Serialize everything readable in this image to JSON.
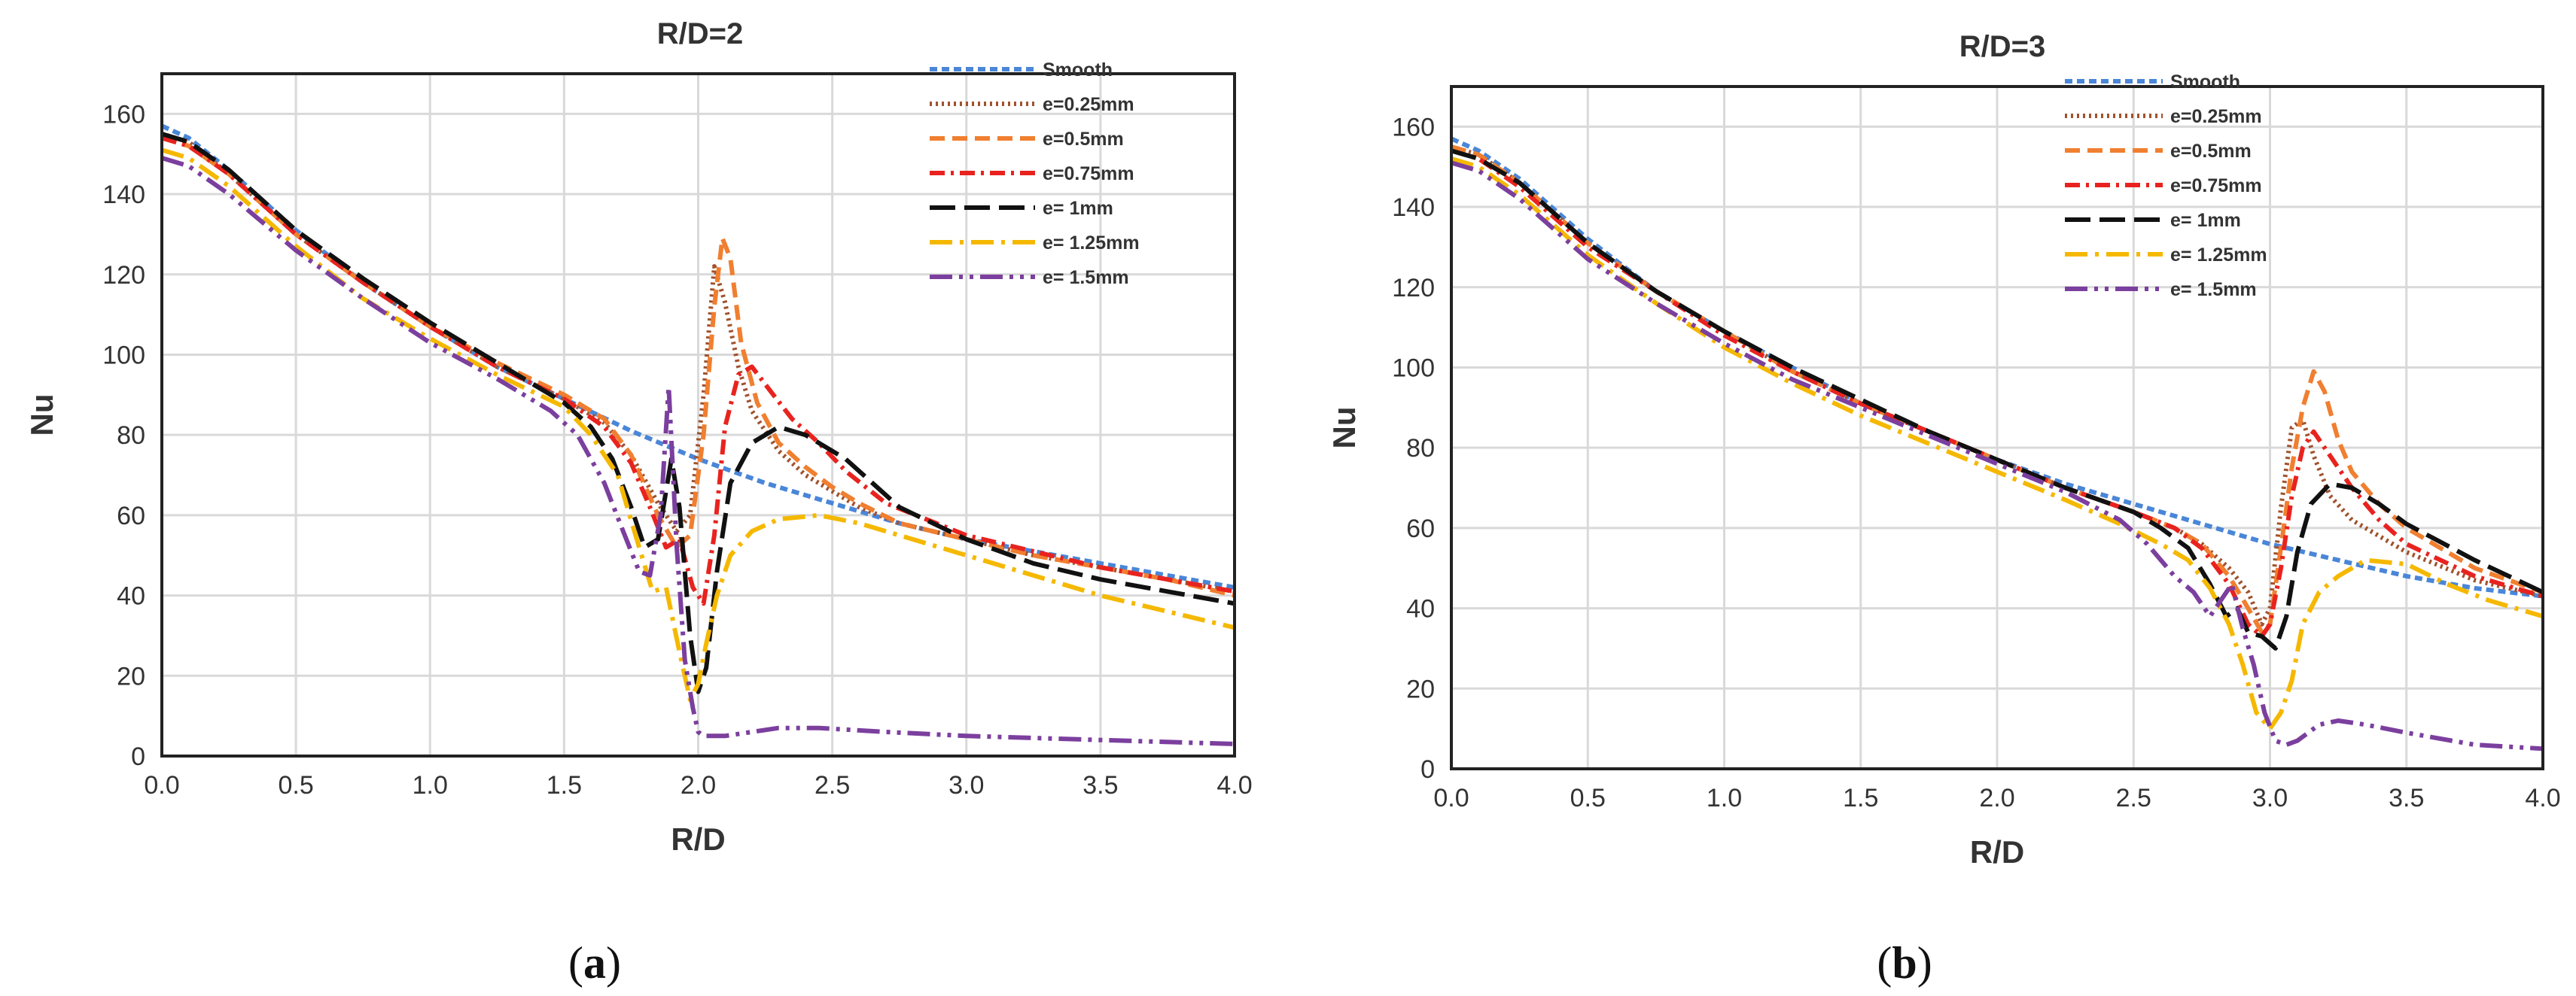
{
  "chart_data": [
    {
      "type": "line",
      "title": "R/D=2",
      "xlabel": "R/D",
      "ylabel": "Nu",
      "caption_open": "(",
      "caption_letter": "a",
      "caption_close": ")",
      "xlim": [
        0,
        4
      ],
      "ylim": [
        0,
        170
      ],
      "xticks": [
        0,
        0.5,
        1,
        1.5,
        2,
        2.5,
        3,
        3.5,
        4
      ],
      "xtick_labels": [
        "0.0",
        "0.5",
        "1.0",
        "1.5",
        "2.0",
        "2.5",
        "3.0",
        "3.5",
        "4.0"
      ],
      "yticks": [
        0,
        20,
        40,
        60,
        80,
        100,
        120,
        140,
        160
      ],
      "ytick_labels": [
        "0",
        "20",
        "40",
        "60",
        "80",
        "100",
        "120",
        "140",
        "160"
      ],
      "grid": true,
      "legend_position": "top-right",
      "series": [
        {
          "name": "Smooth",
          "color": "#4a86d8",
          "style": "dash-short",
          "x": [
            0,
            0.1,
            0.25,
            0.5,
            0.75,
            1.0,
            1.25,
            1.5,
            1.75,
            2.0,
            2.25,
            2.5,
            2.75,
            3.0,
            3.25,
            3.5,
            3.75,
            4.0
          ],
          "y": [
            157,
            154,
            146,
            131,
            118,
            107,
            97,
            89,
            81,
            74,
            68,
            63,
            58,
            54,
            51,
            48,
            45,
            42
          ]
        },
        {
          "name": "e=0.25mm",
          "color": "#a0522d",
          "style": "dot",
          "x": [
            0,
            0.1,
            0.25,
            0.5,
            0.75,
            1.0,
            1.25,
            1.5,
            1.65,
            1.75,
            1.85,
            1.92,
            1.97,
            2.02,
            2.06,
            2.1,
            2.15,
            2.2,
            2.3,
            2.4,
            2.5,
            2.6,
            2.75,
            3.0,
            3.25,
            3.5,
            3.75,
            4.0
          ],
          "y": [
            155,
            153,
            145,
            130,
            118,
            107,
            97,
            89,
            83,
            75,
            63,
            56,
            60,
            90,
            122,
            113,
            97,
            86,
            76,
            70,
            66,
            62,
            58,
            54,
            50,
            47,
            44,
            41
          ]
        },
        {
          "name": "e=0.5mm",
          "color": "#f07f30",
          "style": "dash",
          "x": [
            0,
            0.1,
            0.25,
            0.5,
            0.75,
            1.0,
            1.25,
            1.5,
            1.65,
            1.75,
            1.85,
            1.92,
            1.97,
            2.02,
            2.06,
            2.09,
            2.12,
            2.16,
            2.22,
            2.3,
            2.4,
            2.5,
            2.6,
            2.75,
            3.0,
            3.25,
            3.5,
            3.75,
            4.0
          ],
          "y": [
            154,
            152,
            145,
            130,
            118,
            107,
            98,
            90,
            84,
            75,
            60,
            52,
            55,
            80,
            112,
            129,
            124,
            103,
            88,
            78,
            72,
            67,
            63,
            58,
            54,
            50,
            47,
            44,
            40
          ]
        },
        {
          "name": "e=0.75mm",
          "color": "#e8231f",
          "style": "dashdot",
          "x": [
            0,
            0.1,
            0.25,
            0.5,
            0.75,
            1.0,
            1.25,
            1.5,
            1.65,
            1.75,
            1.82,
            1.88,
            1.93,
            1.98,
            2.02,
            2.06,
            2.1,
            2.15,
            2.2,
            2.28,
            2.35,
            2.45,
            2.55,
            2.7,
            3.0,
            3.25,
            3.5,
            3.75,
            4.0
          ],
          "y": [
            154,
            152,
            145,
            130,
            118,
            107,
            97,
            89,
            82,
            73,
            62,
            52,
            54,
            42,
            38,
            55,
            82,
            95,
            97,
            90,
            84,
            78,
            71,
            63,
            55,
            51,
            47,
            44,
            41
          ]
        },
        {
          "name": "e= 1mm",
          "color": "#111111",
          "style": "longdash",
          "x": [
            0,
            0.1,
            0.25,
            0.5,
            0.75,
            1.0,
            1.25,
            1.5,
            1.6,
            1.68,
            1.75,
            1.8,
            1.85,
            1.9,
            1.93,
            1.97,
            2.0,
            2.03,
            2.07,
            2.12,
            2.2,
            2.3,
            2.4,
            2.55,
            2.75,
            3.0,
            3.25,
            3.5,
            3.75,
            4.0
          ],
          "y": [
            155,
            153,
            146,
            131,
            119,
            108,
            98,
            88,
            82,
            74,
            62,
            52,
            54,
            74,
            62,
            30,
            16,
            22,
            46,
            68,
            78,
            82,
            80,
            74,
            62,
            54,
            48,
            44,
            41,
            38
          ]
        },
        {
          "name": "e= 1.25mm",
          "color": "#f5b800",
          "style": "longdashdot",
          "x": [
            0,
            0.1,
            0.25,
            0.5,
            0.75,
            1.0,
            1.25,
            1.5,
            1.6,
            1.7,
            1.78,
            1.83,
            1.88,
            1.93,
            1.97,
            2.0,
            2.03,
            2.07,
            2.12,
            2.2,
            2.3,
            2.45,
            2.6,
            2.75,
            3.0,
            3.25,
            3.5,
            3.75,
            4.0
          ],
          "y": [
            151,
            149,
            142,
            127,
            114,
            104,
            95,
            87,
            80,
            70,
            52,
            41,
            42,
            26,
            14,
            18,
            28,
            40,
            50,
            56,
            59,
            60,
            58,
            55,
            50,
            45,
            40,
            36,
            32
          ]
        },
        {
          "name": "e= 1.5mm",
          "color": "#7b3f9e",
          "style": "longdashdotdot",
          "x": [
            0,
            0.1,
            0.25,
            0.5,
            0.75,
            1.0,
            1.25,
            1.45,
            1.55,
            1.65,
            1.72,
            1.78,
            1.82,
            1.86,
            1.89,
            1.92,
            1.95,
            1.98,
            2.0,
            2.02,
            2.05,
            2.1,
            2.2,
            2.3,
            2.45,
            2.7,
            3.0,
            3.5,
            4.0
          ],
          "y": [
            149,
            147,
            140,
            126,
            114,
            103,
            94,
            86,
            80,
            68,
            56,
            46,
            45,
            60,
            92,
            52,
            24,
            12,
            6,
            5,
            5,
            5,
            6,
            7,
            7,
            6,
            5,
            4,
            3
          ]
        }
      ]
    },
    {
      "type": "line",
      "title": "R/D=3",
      "xlabel": "R/D",
      "ylabel": "Nu",
      "caption_open": "(",
      "caption_letter": "b",
      "caption_close": ")",
      "xlim": [
        0,
        4
      ],
      "ylim": [
        0,
        170
      ],
      "xticks": [
        0,
        0.5,
        1,
        1.5,
        2,
        2.5,
        3,
        3.5,
        4
      ],
      "xtick_labels": [
        "0.0",
        "0.5",
        "1.0",
        "1.5",
        "2.0",
        "2.5",
        "3.0",
        "3.5",
        "4.0"
      ],
      "yticks": [
        0,
        20,
        40,
        60,
        80,
        100,
        120,
        140,
        160
      ],
      "ytick_labels": [
        "0",
        "20",
        "40",
        "60",
        "80",
        "100",
        "120",
        "140",
        "160"
      ],
      "grid": true,
      "legend_position": "top-right",
      "series": [
        {
          "name": "Smooth",
          "color": "#4a86d8",
          "style": "dash-short",
          "x": [
            0,
            0.1,
            0.25,
            0.5,
            0.75,
            1.0,
            1.25,
            1.5,
            1.75,
            2.0,
            2.25,
            2.5,
            2.75,
            3.0,
            3.25,
            3.5,
            3.75,
            4.0
          ],
          "y": [
            157,
            154,
            147,
            132,
            119,
            109,
            100,
            91,
            84,
            77,
            71,
            66,
            61,
            56,
            52,
            48,
            45,
            43
          ]
        },
        {
          "name": "e=0.25mm",
          "color": "#a0522d",
          "style": "dot",
          "x": [
            0,
            0.1,
            0.25,
            0.5,
            0.75,
            1.0,
            1.25,
            1.5,
            1.75,
            2.0,
            2.25,
            2.5,
            2.65,
            2.75,
            2.85,
            2.92,
            2.97,
            3.0,
            3.04,
            3.08,
            3.12,
            3.16,
            3.22,
            3.3,
            3.4,
            3.5,
            3.75,
            4.0
          ],
          "y": [
            155,
            153,
            146,
            131,
            119,
            109,
            99,
            91,
            84,
            77,
            70,
            64,
            60,
            56,
            50,
            44,
            36,
            40,
            65,
            85,
            87,
            78,
            68,
            62,
            58,
            54,
            47,
            43
          ]
        },
        {
          "name": "e=0.5mm",
          "color": "#f07f30",
          "style": "dash",
          "x": [
            0,
            0.1,
            0.25,
            0.5,
            0.75,
            1.0,
            1.25,
            1.5,
            1.75,
            2.0,
            2.25,
            2.5,
            2.65,
            2.75,
            2.85,
            2.92,
            2.97,
            3.0,
            3.04,
            3.08,
            3.12,
            3.16,
            3.2,
            3.25,
            3.3,
            3.4,
            3.5,
            3.75,
            4.0
          ],
          "y": [
            155,
            153,
            146,
            131,
            119,
            109,
            99,
            91,
            84,
            77,
            70,
            64,
            60,
            56,
            48,
            40,
            34,
            36,
            55,
            75,
            90,
            99,
            94,
            82,
            74,
            66,
            60,
            50,
            44
          ]
        },
        {
          "name": "e=0.75mm",
          "color": "#e8231f",
          "style": "dashdot",
          "x": [
            0,
            0.1,
            0.25,
            0.5,
            0.75,
            1.0,
            1.25,
            1.5,
            1.75,
            2.0,
            2.25,
            2.5,
            2.65,
            2.75,
            2.85,
            2.92,
            2.97,
            3.0,
            3.04,
            3.08,
            3.12,
            3.16,
            3.22,
            3.3,
            3.4,
            3.5,
            3.75,
            4.0
          ],
          "y": [
            154,
            152,
            145,
            130,
            119,
            108,
            99,
            91,
            84,
            77,
            70,
            64,
            60,
            55,
            46,
            36,
            33,
            36,
            50,
            68,
            80,
            84,
            78,
            70,
            62,
            56,
            48,
            43
          ]
        },
        {
          "name": "e= 1mm",
          "color": "#111111",
          "style": "longdash",
          "x": [
            0,
            0.1,
            0.25,
            0.5,
            0.75,
            1.0,
            1.25,
            1.5,
            1.75,
            2.0,
            2.25,
            2.5,
            2.6,
            2.7,
            2.78,
            2.84,
            2.88,
            2.92,
            2.97,
            3.02,
            3.06,
            3.1,
            3.15,
            3.22,
            3.3,
            3.4,
            3.5,
            3.75,
            4.0
          ],
          "y": [
            154,
            152,
            146,
            131,
            119,
            109,
            100,
            92,
            84,
            77,
            70,
            64,
            60,
            55,
            46,
            38,
            40,
            34,
            33,
            30,
            38,
            54,
            66,
            71,
            70,
            66,
            61,
            52,
            44
          ]
        },
        {
          "name": "e= 1.25mm",
          "color": "#f5b800",
          "style": "longdashdot",
          "x": [
            0,
            0.1,
            0.25,
            0.5,
            0.75,
            1.0,
            1.25,
            1.5,
            1.75,
            2.0,
            2.25,
            2.45,
            2.6,
            2.7,
            2.78,
            2.85,
            2.9,
            2.95,
            3.0,
            3.04,
            3.08,
            3.12,
            3.18,
            3.25,
            3.35,
            3.5,
            3.65,
            3.8,
            4.0
          ],
          "y": [
            152,
            150,
            143,
            128,
            116,
            105,
            96,
            88,
            81,
            74,
            67,
            61,
            56,
            52,
            45,
            36,
            26,
            14,
            10,
            14,
            22,
            36,
            44,
            48,
            52,
            51,
            46,
            42,
            38
          ]
        },
        {
          "name": "e= 1.5mm",
          "color": "#7b3f9e",
          "style": "longdashdotdot",
          "x": [
            0,
            0.1,
            0.25,
            0.5,
            0.75,
            1.0,
            1.25,
            1.5,
            1.75,
            2.0,
            2.25,
            2.45,
            2.55,
            2.65,
            2.72,
            2.78,
            2.82,
            2.86,
            2.9,
            2.94,
            2.98,
            3.02,
            3.06,
            3.1,
            3.18,
            3.25,
            3.35,
            3.5,
            3.75,
            4.0
          ],
          "y": [
            151,
            149,
            142,
            127,
            116,
            106,
            97,
            90,
            83,
            76,
            69,
            62,
            56,
            48,
            44,
            38,
            42,
            46,
            35,
            26,
            14,
            7,
            6,
            7,
            11,
            12,
            11,
            9,
            6,
            5
          ]
        }
      ]
    }
  ]
}
